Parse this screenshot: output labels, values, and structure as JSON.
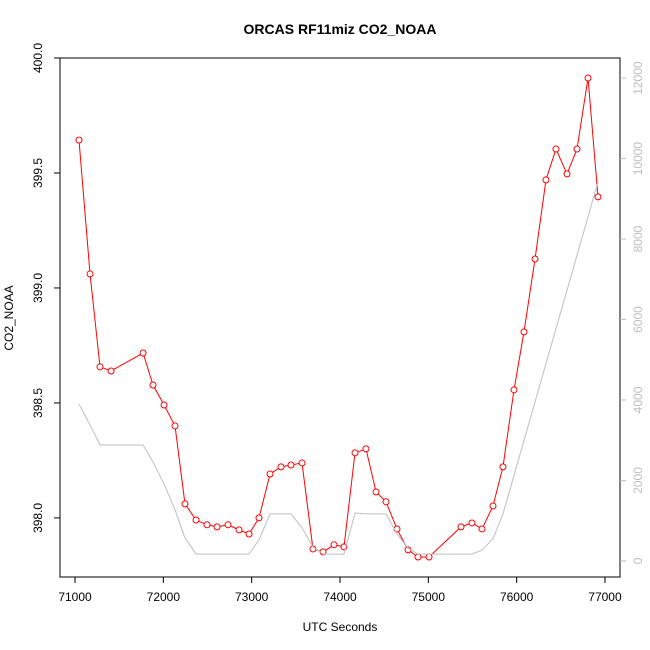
{
  "chart_data": {
    "type": "line",
    "title": "ORCAS RF11miz CO2_NOAA",
    "x_label": "UTC Seconds",
    "y_label": "CO2_NOAA",
    "xlim": [
      70830,
      77170
    ],
    "ylim": [
      397.743,
      400.0
    ],
    "y2lim": [
      -400,
      12500
    ],
    "xticks": [
      71000,
      72000,
      73000,
      74000,
      75000,
      76000,
      77000
    ],
    "yticks": [
      {
        "value": 398.0,
        "label": "398.0"
      },
      {
        "value": 398.5,
        "label": "398.5"
      },
      {
        "value": 399.0,
        "label": "399.0"
      },
      {
        "value": 399.5,
        "label": "399.5"
      },
      {
        "value": 400.0,
        "label": "400.0"
      }
    ],
    "y2ticks": [
      0,
      2000,
      4000,
      6000,
      8000,
      10000,
      12000
    ],
    "series": [
      {
        "color": "#ff0000",
        "marker": "circle",
        "x": [
          71045,
          71170,
          71283,
          71408,
          71770,
          71883,
          72008,
          72132,
          72245,
          72370,
          72494,
          72608,
          72732,
          72857,
          72970,
          73083,
          73208,
          73332,
          73445,
          73570,
          73694,
          73808,
          73932,
          74045,
          74170,
          74294,
          74408,
          74521,
          74645,
          74770,
          74883,
          75008,
          75370,
          75494,
          75608,
          75732,
          75845,
          75970,
          76083,
          76208,
          76332,
          76445,
          76570,
          76683,
          76808,
          76921
        ],
        "values": [
          399.643,
          399.061,
          398.657,
          398.639,
          398.717,
          398.578,
          398.491,
          398.4,
          398.061,
          397.991,
          397.97,
          397.961,
          397.97,
          397.948,
          397.93,
          398.0,
          398.191,
          398.222,
          398.23,
          398.239,
          397.865,
          397.852,
          397.883,
          397.874,
          398.283,
          398.3,
          398.113,
          398.07,
          397.952,
          397.861,
          397.83,
          397.83,
          397.961,
          397.978,
          397.952,
          398.052,
          398.222,
          398.557,
          398.809,
          399.126,
          399.47,
          399.604,
          399.496,
          399.604,
          399.913,
          399.396
        ]
      },
      {
        "color": "#bebebe",
        "axis": "y2",
        "x": [
          71045,
          71170,
          71283,
          71770,
          71883,
          72008,
          72132,
          72245,
          72370,
          72970,
          73083,
          73208,
          73445,
          73570,
          73694,
          73808,
          74045,
          74170,
          74294,
          74521,
          74645,
          74770,
          74883,
          75494,
          75608,
          75732,
          75845,
          76921
        ],
        "values": [
          3900,
          3380,
          2880,
          2880,
          2460,
          1910,
          1270,
          570,
          170,
          170,
          520,
          1170,
          1170,
          820,
          350,
          170,
          170,
          1190,
          1170,
          1170,
          670,
          320,
          170,
          170,
          270,
          550,
          1170,
          9420
        ]
      }
    ]
  }
}
